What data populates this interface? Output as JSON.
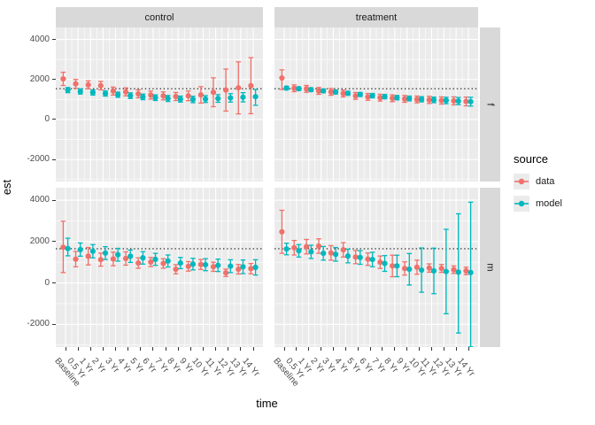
{
  "colors": {
    "data": "#F1706A",
    "model": "#00B8BE",
    "panel_bg": "#EBEBEB",
    "strip_bg": "#D9D9D9",
    "grid": "#FFFFFF",
    "axis_text": "#4D4D4D",
    "text": "#1A1A1A",
    "legend_key_bg": "#EBEBEB",
    "reference_line": "#1A1A1A"
  },
  "axes": {
    "y_label": "est",
    "x_label": "time",
    "y_ticks": [
      {
        "label": "4000",
        "value": 4000
      },
      {
        "label": "2000",
        "value": 2000
      },
      {
        "label": "0",
        "value": 0
      },
      {
        "label": "-2000",
        "value": -2000
      }
    ],
    "y_minor_ticks": [
      3000,
      1000,
      -1000,
      -3000
    ],
    "y_domain": [
      -3100,
      4600
    ]
  },
  "facets": {
    "col_labels": [
      "control",
      "treatment"
    ],
    "row_labels": [
      "f",
      "m"
    ]
  },
  "legend": {
    "title": "source",
    "items": [
      {
        "label": "data",
        "color_key": "data"
      },
      {
        "label": "model",
        "color_key": "model"
      }
    ]
  },
  "chart_data": {
    "type": "pointrange",
    "title": "",
    "xlabel": "time",
    "ylabel": "est",
    "ylim": [
      -3100,
      4600
    ],
    "grid": true,
    "legend_position": "right",
    "x_categories": [
      "Baseline",
      "0.5 Yr",
      "1 Yr",
      "2 Yr",
      "3 Yr",
      "4 Yr",
      "5 Yr",
      "6 Yr",
      "7 Yr",
      "8 Yr",
      "9 Yr",
      "10 Yr",
      "11 Yr",
      "12 Yr",
      "13 Yr",
      "14 Yr"
    ],
    "reference_lines": {
      "f": 1540,
      "m": 1650,
      "style": "dotted"
    },
    "panels": [
      {
        "facet_row": "f",
        "facet_col": "control",
        "series": [
          {
            "name": "data",
            "est": [
              2030,
              1780,
              1730,
              1690,
              1420,
              1380,
              1280,
              1220,
              1180,
              1150,
              1180,
              1230,
              1360,
              1470,
              1580,
              1690
            ],
            "lo": [
              1700,
              1560,
              1530,
              1480,
              1220,
              1180,
              1080,
              1020,
              980,
              950,
              940,
              820,
              640,
              420,
              280,
              290
            ],
            "hi": [
              2360,
              2000,
              1930,
              1900,
              1620,
              1580,
              1480,
              1420,
              1380,
              1350,
              1420,
              1640,
              2080,
              2520,
              2880,
              3090
            ]
          },
          {
            "name": "model",
            "est": [
              1470,
              1400,
              1350,
              1300,
              1240,
              1190,
              1130,
              1090,
              1050,
              1020,
              1000,
              1020,
              1050,
              1080,
              1110,
              1140
            ],
            "lo": [
              1340,
              1270,
              1220,
              1170,
              1110,
              1050,
              990,
              950,
              900,
              870,
              840,
              850,
              860,
              870,
              880,
              710
            ],
            "hi": [
              1600,
              1530,
              1480,
              1430,
              1370,
              1330,
              1270,
              1230,
              1200,
              1170,
              1160,
              1190,
              1240,
              1290,
              1340,
              1500
            ]
          }
        ]
      },
      {
        "facet_row": "f",
        "facet_col": "treatment",
        "series": [
          {
            "name": "data",
            "est": [
              2075,
              1560,
              1530,
              1430,
              1380,
              1300,
              1180,
              1130,
              1090,
              1060,
              1030,
              1000,
              980,
              950,
              930,
              900
            ],
            "lo": [
              1500,
              1390,
              1360,
              1260,
              1210,
              1130,
              1010,
              960,
              920,
              890,
              860,
              830,
              800,
              770,
              730,
              680
            ],
            "hi": [
              2480,
              1730,
              1700,
              1600,
              1550,
              1470,
              1350,
              1300,
              1260,
              1230,
              1200,
              1170,
              1160,
              1130,
              1130,
              1120
            ]
          },
          {
            "name": "model",
            "est": [
              1570,
              1540,
              1490,
              1430,
              1370,
              1310,
              1250,
              1190,
              1140,
              1090,
              1050,
              1010,
              980,
              950,
              920,
              890
            ],
            "lo": [
              1480,
              1450,
              1400,
              1340,
              1270,
              1210,
              1150,
              1080,
              1030,
              980,
              930,
              880,
              840,
              790,
              740,
              670
            ],
            "hi": [
              1660,
              1630,
              1580,
              1520,
              1470,
              1410,
              1350,
              1300,
              1250,
              1200,
              1170,
              1140,
              1120,
              1110,
              1100,
              1110
            ]
          }
        ]
      },
      {
        "facet_row": "m",
        "facet_col": "control",
        "series": [
          {
            "name": "data",
            "est": [
              1720,
              1150,
              1290,
              1120,
              1160,
              1180,
              960,
              1010,
              940,
              660,
              800,
              890,
              780,
              490,
              660,
              690
            ],
            "lo": [
              500,
              780,
              870,
              810,
              830,
              860,
              710,
              790,
              710,
              440,
              570,
              650,
              560,
              310,
              430,
              440
            ],
            "hi": [
              2980,
              1520,
              1710,
              1440,
              1490,
              1500,
              1210,
              1230,
              1170,
              880,
              1030,
              1130,
              1000,
              670,
              890,
              940
            ]
          },
          {
            "name": "model",
            "est": [
              1660,
              1610,
              1530,
              1440,
              1360,
              1290,
              1210,
              1140,
              1060,
              960,
              910,
              880,
              850,
              810,
              780,
              750
            ],
            "lo": [
              1310,
              1290,
              1210,
              1130,
              1050,
              990,
              910,
              850,
              770,
              690,
              630,
              590,
              550,
              500,
              450,
              380
            ],
            "hi": [
              2160,
              1930,
              1850,
              1750,
              1670,
              1590,
              1510,
              1430,
              1350,
              1230,
              1190,
              1170,
              1150,
              1120,
              1110,
              1120
            ]
          }
        ]
      },
      {
        "facet_row": "m",
        "facet_col": "treatment",
        "series": [
          {
            "name": "data",
            "est": [
              2470,
              1700,
              1750,
              1780,
              1450,
              1600,
              1250,
              1150,
              1000,
              820,
              700,
              760,
              720,
              700,
              640,
              580
            ],
            "lo": [
              1430,
              1350,
              1400,
              1430,
              1100,
              1250,
              930,
              850,
              700,
              300,
              380,
              420,
              520,
              510,
              460,
              400
            ],
            "hi": [
              3510,
              2050,
              2100,
              2130,
              1800,
              1950,
              1570,
              1450,
              1300,
              1340,
              1020,
              1100,
              920,
              890,
              820,
              760
            ]
          },
          {
            "name": "model",
            "est": [
              1640,
              1550,
              1500,
              1430,
              1380,
              1300,
              1230,
              1130,
              940,
              820,
              660,
              620,
              580,
              550,
              520,
              500
            ],
            "lo": [
              1360,
              1250,
              1180,
              1100,
              1050,
              970,
              900,
              780,
              560,
              300,
              -100,
              -450,
              -520,
              -1490,
              -2420,
              -3090
            ],
            "hi": [
              1920,
              1850,
              1820,
              1760,
              1710,
              1630,
              1560,
              1480,
              1320,
              1340,
              1420,
              1690,
              1680,
              2590,
              3340,
              3900
            ]
          }
        ]
      }
    ]
  }
}
